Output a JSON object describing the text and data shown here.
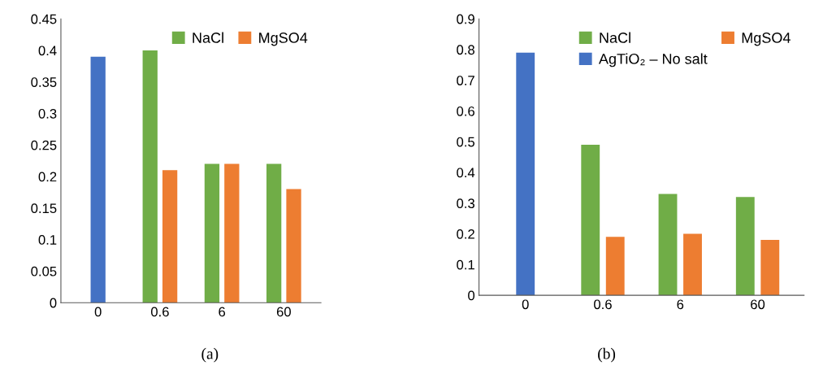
{
  "chart_data": [
    {
      "type": "bar",
      "categories": [
        "0",
        "0.6",
        "6",
        "60"
      ],
      "series": [
        {
          "name": "NaCl",
          "color": "#70ad47",
          "values": [
            null,
            0.4,
            0.22,
            0.22
          ]
        },
        {
          "name": "MgSO4",
          "color": "#ed7d31",
          "values": [
            null,
            0.21,
            0.22,
            0.18
          ]
        },
        {
          "color": "#4472c4",
          "values": [
            0.39,
            null,
            null,
            null
          ]
        }
      ],
      "ylim": [
        0,
        0.45
      ],
      "yticks": [
        {
          "value": 0,
          "label": "0"
        },
        0.05,
        0.1,
        0.15,
        0.2,
        0.25,
        0.3,
        0.35,
        0.4,
        0.45
      ],
      "legend": "top right",
      "annotations": [
        "(a)"
      ]
    },
    {
      "type": "bar",
      "categories": [
        "0",
        "0.6",
        "6",
        "60"
      ],
      "series": [
        {
          "name": "NaCl",
          "color": "#70ad47",
          "values": [
            null,
            0.49,
            0.33,
            0.32
          ]
        },
        {
          "name": "MgSO4",
          "color": "#ed7d31",
          "values": [
            null,
            0.19,
            0.2,
            0.18
          ]
        },
        {
          "name": "AgTiO₂ – No salt",
          "color": "#4472c4",
          "values": [
            0.79,
            null,
            null,
            null
          ]
        }
      ],
      "ylim": [
        0,
        0.9
      ],
      "yticks": [
        {
          "value": 0,
          "label": "0"
        },
        0.1,
        0.2,
        0.3,
        0.4,
        0.5,
        0.6,
        0.7,
        0.8,
        0.9
      ],
      "legend": "top right",
      "annotations": [
        "(b)"
      ]
    }
  ]
}
